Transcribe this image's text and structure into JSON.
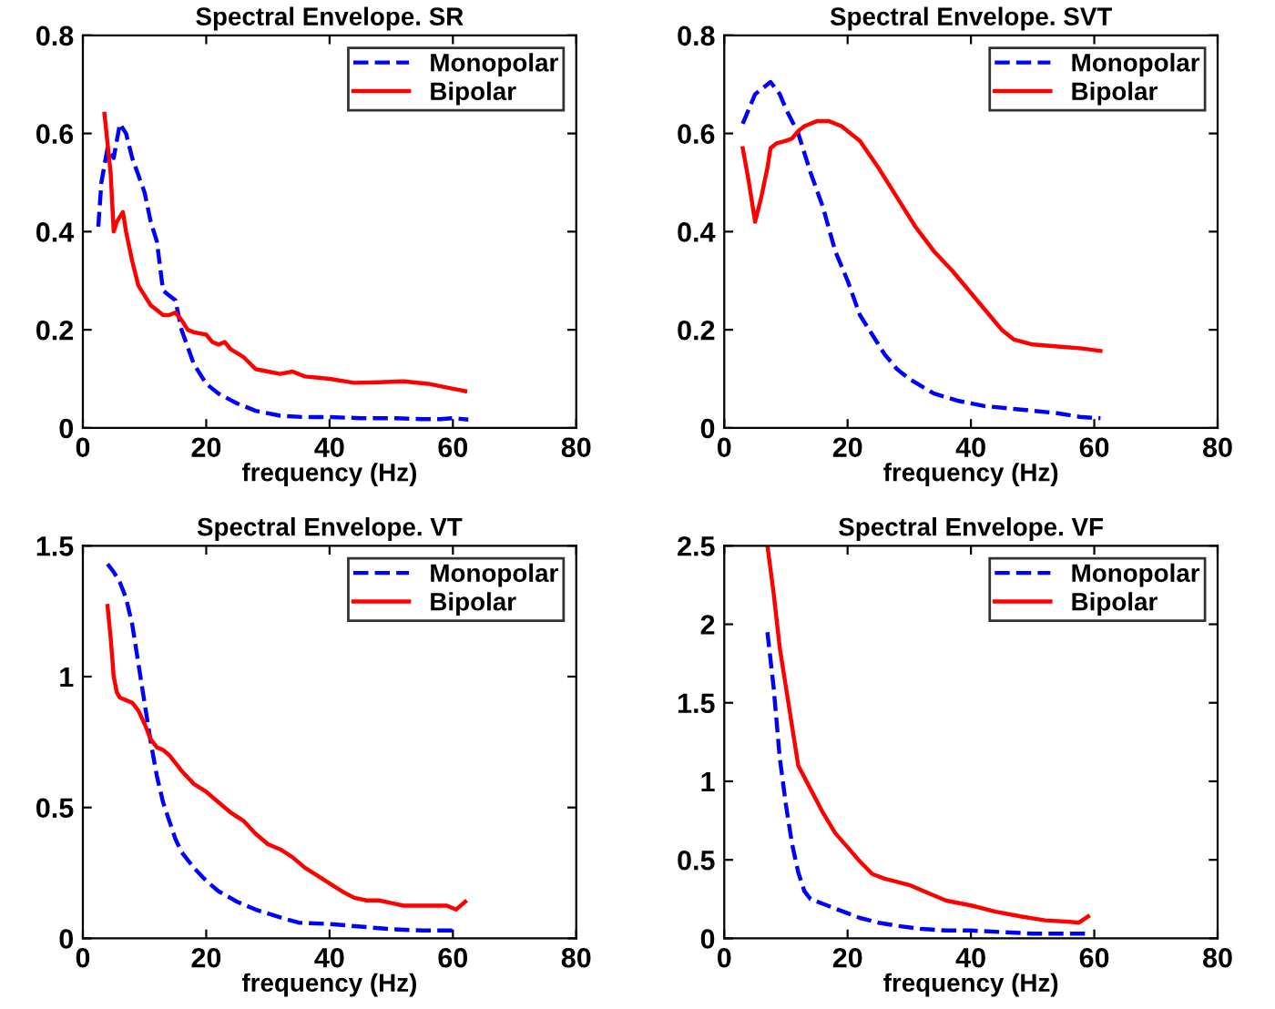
{
  "chart_data": [
    {
      "type": "line",
      "title": "Spectral Envelope. SR",
      "xlabel": "frequency (Hz)",
      "xlim": [
        0,
        80
      ],
      "xticks": [
        0,
        20,
        40,
        60,
        80
      ],
      "ylim": [
        0,
        0.8
      ],
      "yticks": [
        0,
        0.2,
        0.4,
        0.6,
        0.8
      ],
      "grid": false,
      "legend": "top right",
      "series": [
        {
          "name": "Monopolar",
          "color": "#0000ff",
          "line_style": "dashed",
          "x": [
            2.5,
            3,
            4,
            5,
            6,
            7,
            8,
            10,
            11,
            12,
            13,
            14,
            15,
            16,
            18,
            20,
            22,
            25,
            28,
            32,
            36,
            40,
            45,
            50,
            55,
            58,
            60,
            62.5
          ],
          "values": [
            0.41,
            0.5,
            0.57,
            0.55,
            0.62,
            0.6,
            0.55,
            0.48,
            0.42,
            0.38,
            0.28,
            0.27,
            0.26,
            0.2,
            0.13,
            0.09,
            0.07,
            0.05,
            0.035,
            0.025,
            0.022,
            0.022,
            0.02,
            0.02,
            0.018,
            0.018,
            0.02,
            0.017
          ]
        },
        {
          "name": "Bipolar",
          "color": "#ff0000",
          "line_style": "solid",
          "x": [
            3.5,
            4,
            4.5,
            5,
            5.5,
            6,
            6.5,
            7,
            8,
            9,
            10,
            11,
            12,
            13,
            14,
            15,
            16,
            17,
            18,
            20,
            21,
            22,
            23,
            24,
            26,
            28,
            30,
            32,
            34,
            36,
            40,
            44,
            48,
            52,
            56,
            60,
            62
          ],
          "values": [
            0.64,
            0.58,
            0.52,
            0.4,
            0.42,
            0.43,
            0.44,
            0.4,
            0.34,
            0.29,
            0.27,
            0.25,
            0.24,
            0.23,
            0.23,
            0.235,
            0.22,
            0.2,
            0.195,
            0.19,
            0.175,
            0.17,
            0.175,
            0.16,
            0.145,
            0.12,
            0.115,
            0.11,
            0.115,
            0.105,
            0.1,
            0.092,
            0.093,
            0.095,
            0.09,
            0.08,
            0.075
          ]
        }
      ]
    },
    {
      "type": "line",
      "title": "Spectral Envelope. SVT",
      "xlabel": "frequency (Hz)",
      "xlim": [
        0,
        80
      ],
      "xticks": [
        0,
        20,
        40,
        60,
        80
      ],
      "ylim": [
        0,
        0.8
      ],
      "yticks": [
        0,
        0.2,
        0.4,
        0.6,
        0.8
      ],
      "grid": false,
      "legend": "top right",
      "series": [
        {
          "name": "Monopolar",
          "color": "#0000ff",
          "line_style": "dashed",
          "x": [
            3,
            4,
            5,
            6,
            7.5,
            9,
            10,
            12,
            14,
            16,
            18,
            20,
            22,
            24,
            26,
            28,
            30,
            34,
            38,
            42,
            46,
            50,
            54,
            58,
            61
          ],
          "values": [
            0.62,
            0.65,
            0.68,
            0.69,
            0.705,
            0.68,
            0.65,
            0.6,
            0.52,
            0.45,
            0.36,
            0.3,
            0.23,
            0.19,
            0.15,
            0.12,
            0.1,
            0.07,
            0.055,
            0.045,
            0.04,
            0.035,
            0.03,
            0.022,
            0.02
          ]
        },
        {
          "name": "Bipolar",
          "color": "#ff0000",
          "line_style": "solid",
          "x": [
            3,
            4,
            5,
            6,
            7,
            7.5,
            8.5,
            10,
            11,
            12,
            13,
            15,
            17,
            19,
            22,
            25,
            28,
            31,
            34,
            37,
            40,
            43,
            45,
            47,
            50,
            55,
            58,
            61
          ],
          "values": [
            0.57,
            0.5,
            0.42,
            0.47,
            0.53,
            0.57,
            0.58,
            0.585,
            0.59,
            0.605,
            0.615,
            0.625,
            0.625,
            0.615,
            0.585,
            0.53,
            0.47,
            0.41,
            0.36,
            0.32,
            0.275,
            0.23,
            0.2,
            0.18,
            0.17,
            0.165,
            0.162,
            0.157
          ]
        }
      ]
    },
    {
      "type": "line",
      "title": "Spectral Envelope. VT",
      "xlabel": "frequency (Hz)",
      "xlim": [
        0,
        80
      ],
      "xticks": [
        0,
        20,
        40,
        60,
        80
      ],
      "ylim": [
        0,
        1.5
      ],
      "yticks": [
        0,
        0.5,
        1,
        1.5
      ],
      "grid": false,
      "legend": "top right",
      "series": [
        {
          "name": "Monopolar",
          "color": "#0000ff",
          "line_style": "dashed",
          "x": [
            4,
            5,
            6,
            7,
            8,
            9,
            10,
            11,
            12,
            13,
            14,
            15,
            16,
            18,
            20,
            22,
            25,
            28,
            32,
            35,
            40,
            45,
            50,
            55,
            60
          ],
          "values": [
            1.43,
            1.4,
            1.36,
            1.3,
            1.2,
            1.05,
            0.9,
            0.75,
            0.62,
            0.52,
            0.45,
            0.38,
            0.33,
            0.27,
            0.22,
            0.18,
            0.14,
            0.11,
            0.08,
            0.06,
            0.055,
            0.045,
            0.035,
            0.03,
            0.03
          ]
        },
        {
          "name": "Bipolar",
          "color": "#ff0000",
          "line_style": "solid",
          "x": [
            4,
            4.5,
            5,
            5.5,
            6,
            7,
            8,
            9,
            10,
            11,
            12,
            13,
            14,
            16,
            18,
            20,
            22,
            24,
            26,
            28,
            30,
            32,
            34,
            36,
            38,
            40,
            42,
            44,
            46,
            48,
            50,
            52,
            56,
            59,
            60.5,
            62
          ],
          "values": [
            1.27,
            1.15,
            1.0,
            0.94,
            0.92,
            0.91,
            0.9,
            0.87,
            0.82,
            0.76,
            0.73,
            0.72,
            0.7,
            0.64,
            0.59,
            0.56,
            0.52,
            0.48,
            0.45,
            0.4,
            0.36,
            0.34,
            0.31,
            0.27,
            0.24,
            0.21,
            0.18,
            0.155,
            0.145,
            0.145,
            0.135,
            0.125,
            0.125,
            0.125,
            0.11,
            0.14
          ]
        }
      ]
    },
    {
      "type": "line",
      "title": "Spectral Envelope. VF",
      "xlabel": "frequency (Hz)",
      "xlim": [
        0,
        80
      ],
      "xticks": [
        0,
        20,
        40,
        60,
        80
      ],
      "ylim": [
        0,
        2.5
      ],
      "yticks": [
        0,
        0.5,
        1,
        1.5,
        2,
        2.5
      ],
      "grid": false,
      "legend": "top right",
      "series": [
        {
          "name": "Monopolar",
          "color": "#0000ff",
          "line_style": "dashed",
          "x": [
            7,
            8,
            9,
            10,
            11,
            12,
            13,
            14,
            16,
            18,
            20,
            22,
            25,
            28,
            32,
            36,
            40,
            45,
            50,
            55,
            59
          ],
          "values": [
            1.95,
            1.6,
            1.15,
            0.85,
            0.6,
            0.42,
            0.3,
            0.25,
            0.22,
            0.19,
            0.16,
            0.13,
            0.1,
            0.08,
            0.06,
            0.05,
            0.05,
            0.04,
            0.03,
            0.03,
            0.03
          ]
        },
        {
          "name": "Bipolar",
          "color": "#ff0000",
          "line_style": "solid",
          "x": [
            7,
            8,
            9,
            10,
            11,
            12,
            14,
            16,
            18,
            20,
            22,
            24,
            26,
            28,
            30,
            33,
            36,
            40,
            44,
            48,
            52,
            56,
            57.5,
            59
          ],
          "values": [
            2.5,
            2.2,
            1.85,
            1.6,
            1.35,
            1.1,
            0.95,
            0.8,
            0.67,
            0.58,
            0.49,
            0.41,
            0.38,
            0.36,
            0.34,
            0.29,
            0.24,
            0.21,
            0.17,
            0.14,
            0.115,
            0.105,
            0.1,
            0.14
          ]
        }
      ]
    }
  ]
}
